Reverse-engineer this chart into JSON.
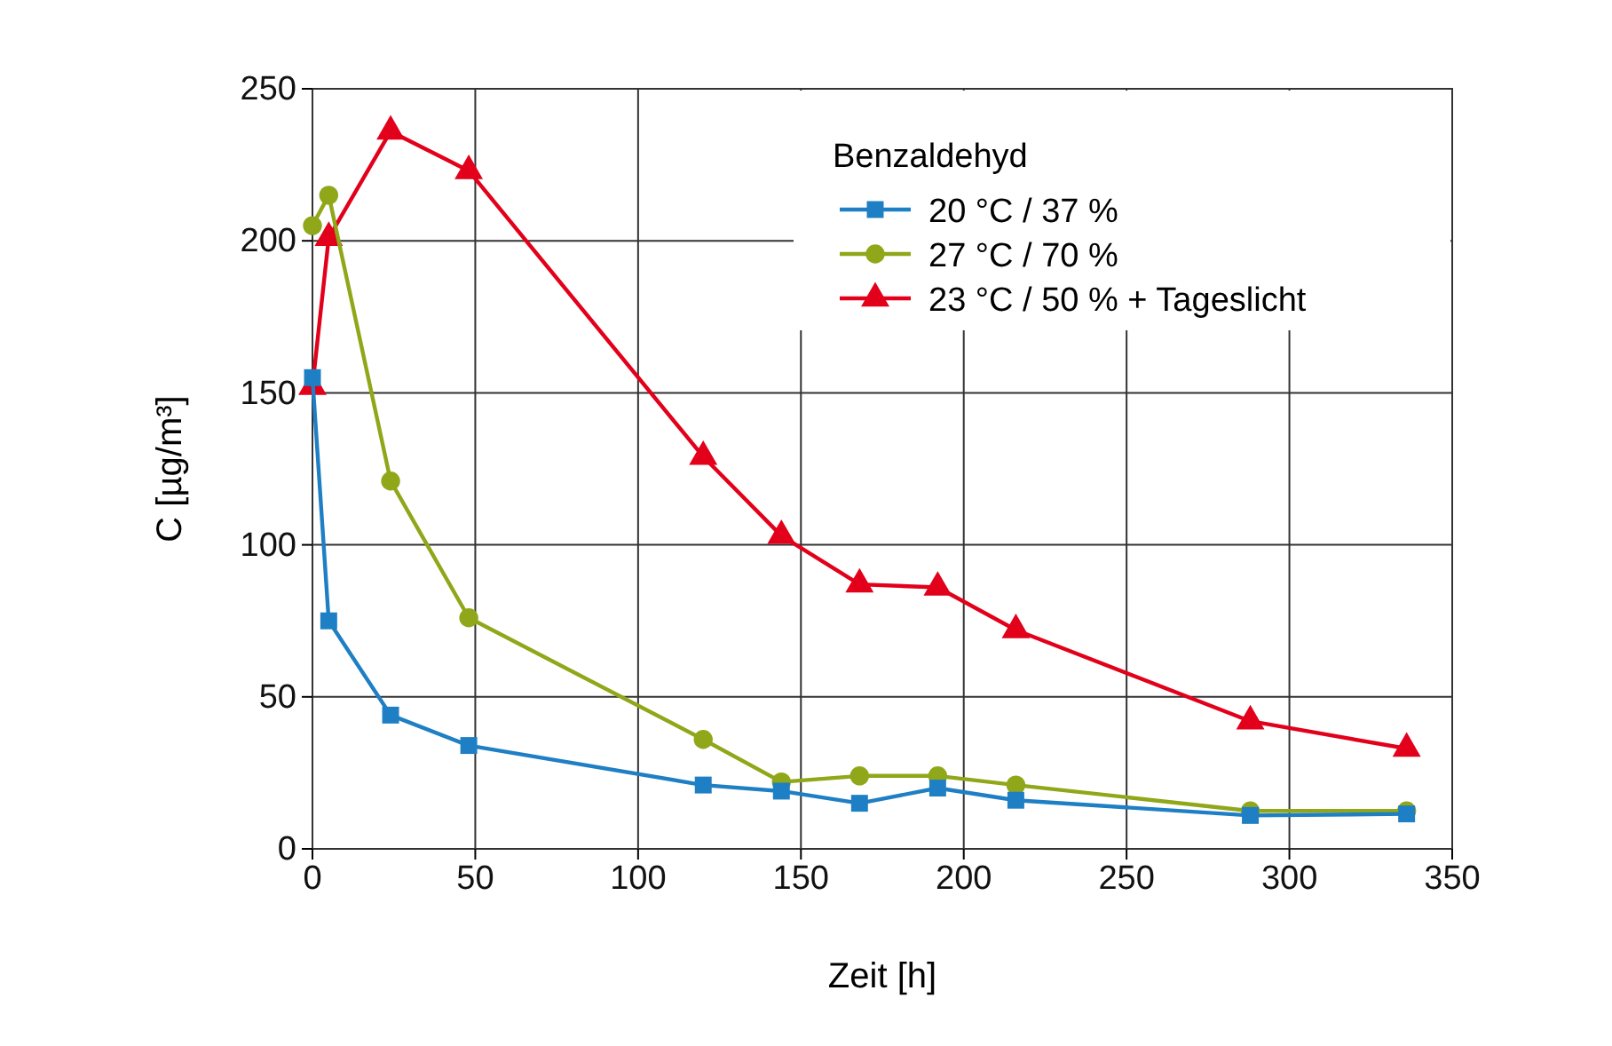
{
  "chart_data": {
    "type": "line",
    "xlabel": "Zeit [h]",
    "ylabel": "C [µg/m³]",
    "legend_title": "Benzaldehyd",
    "legend": "top right",
    "grid": true,
    "xlim": [
      0,
      350
    ],
    "xticks": [
      0,
      50,
      100,
      150,
      200,
      250,
      300,
      350
    ],
    "ylim": [
      0,
      250
    ],
    "yticks": [
      0,
      50,
      100,
      150,
      200,
      250
    ],
    "x": [
      0,
      5,
      24,
      48,
      120,
      144,
      168,
      192,
      216,
      288,
      336
    ],
    "series": [
      {
        "name": "20 °C / 37 %",
        "color": "#1f7fc4",
        "marker": "square",
        "values": [
          155,
          75,
          44,
          34,
          21,
          19,
          15,
          20,
          16,
          11,
          11.5
        ]
      },
      {
        "name": "27 °C / 70 %",
        "color": "#8fa719",
        "marker": "circle",
        "values": [
          205,
          215,
          121,
          76,
          36,
          22,
          24,
          24,
          21,
          12.5,
          12.5
        ]
      },
      {
        "name": "23 °C / 50 % + Tageslicht",
        "color": "#e2001a",
        "marker": "triangle",
        "values": [
          152,
          201,
          236,
          223,
          129,
          103,
          87,
          86,
          72,
          42,
          33
        ]
      }
    ]
  }
}
